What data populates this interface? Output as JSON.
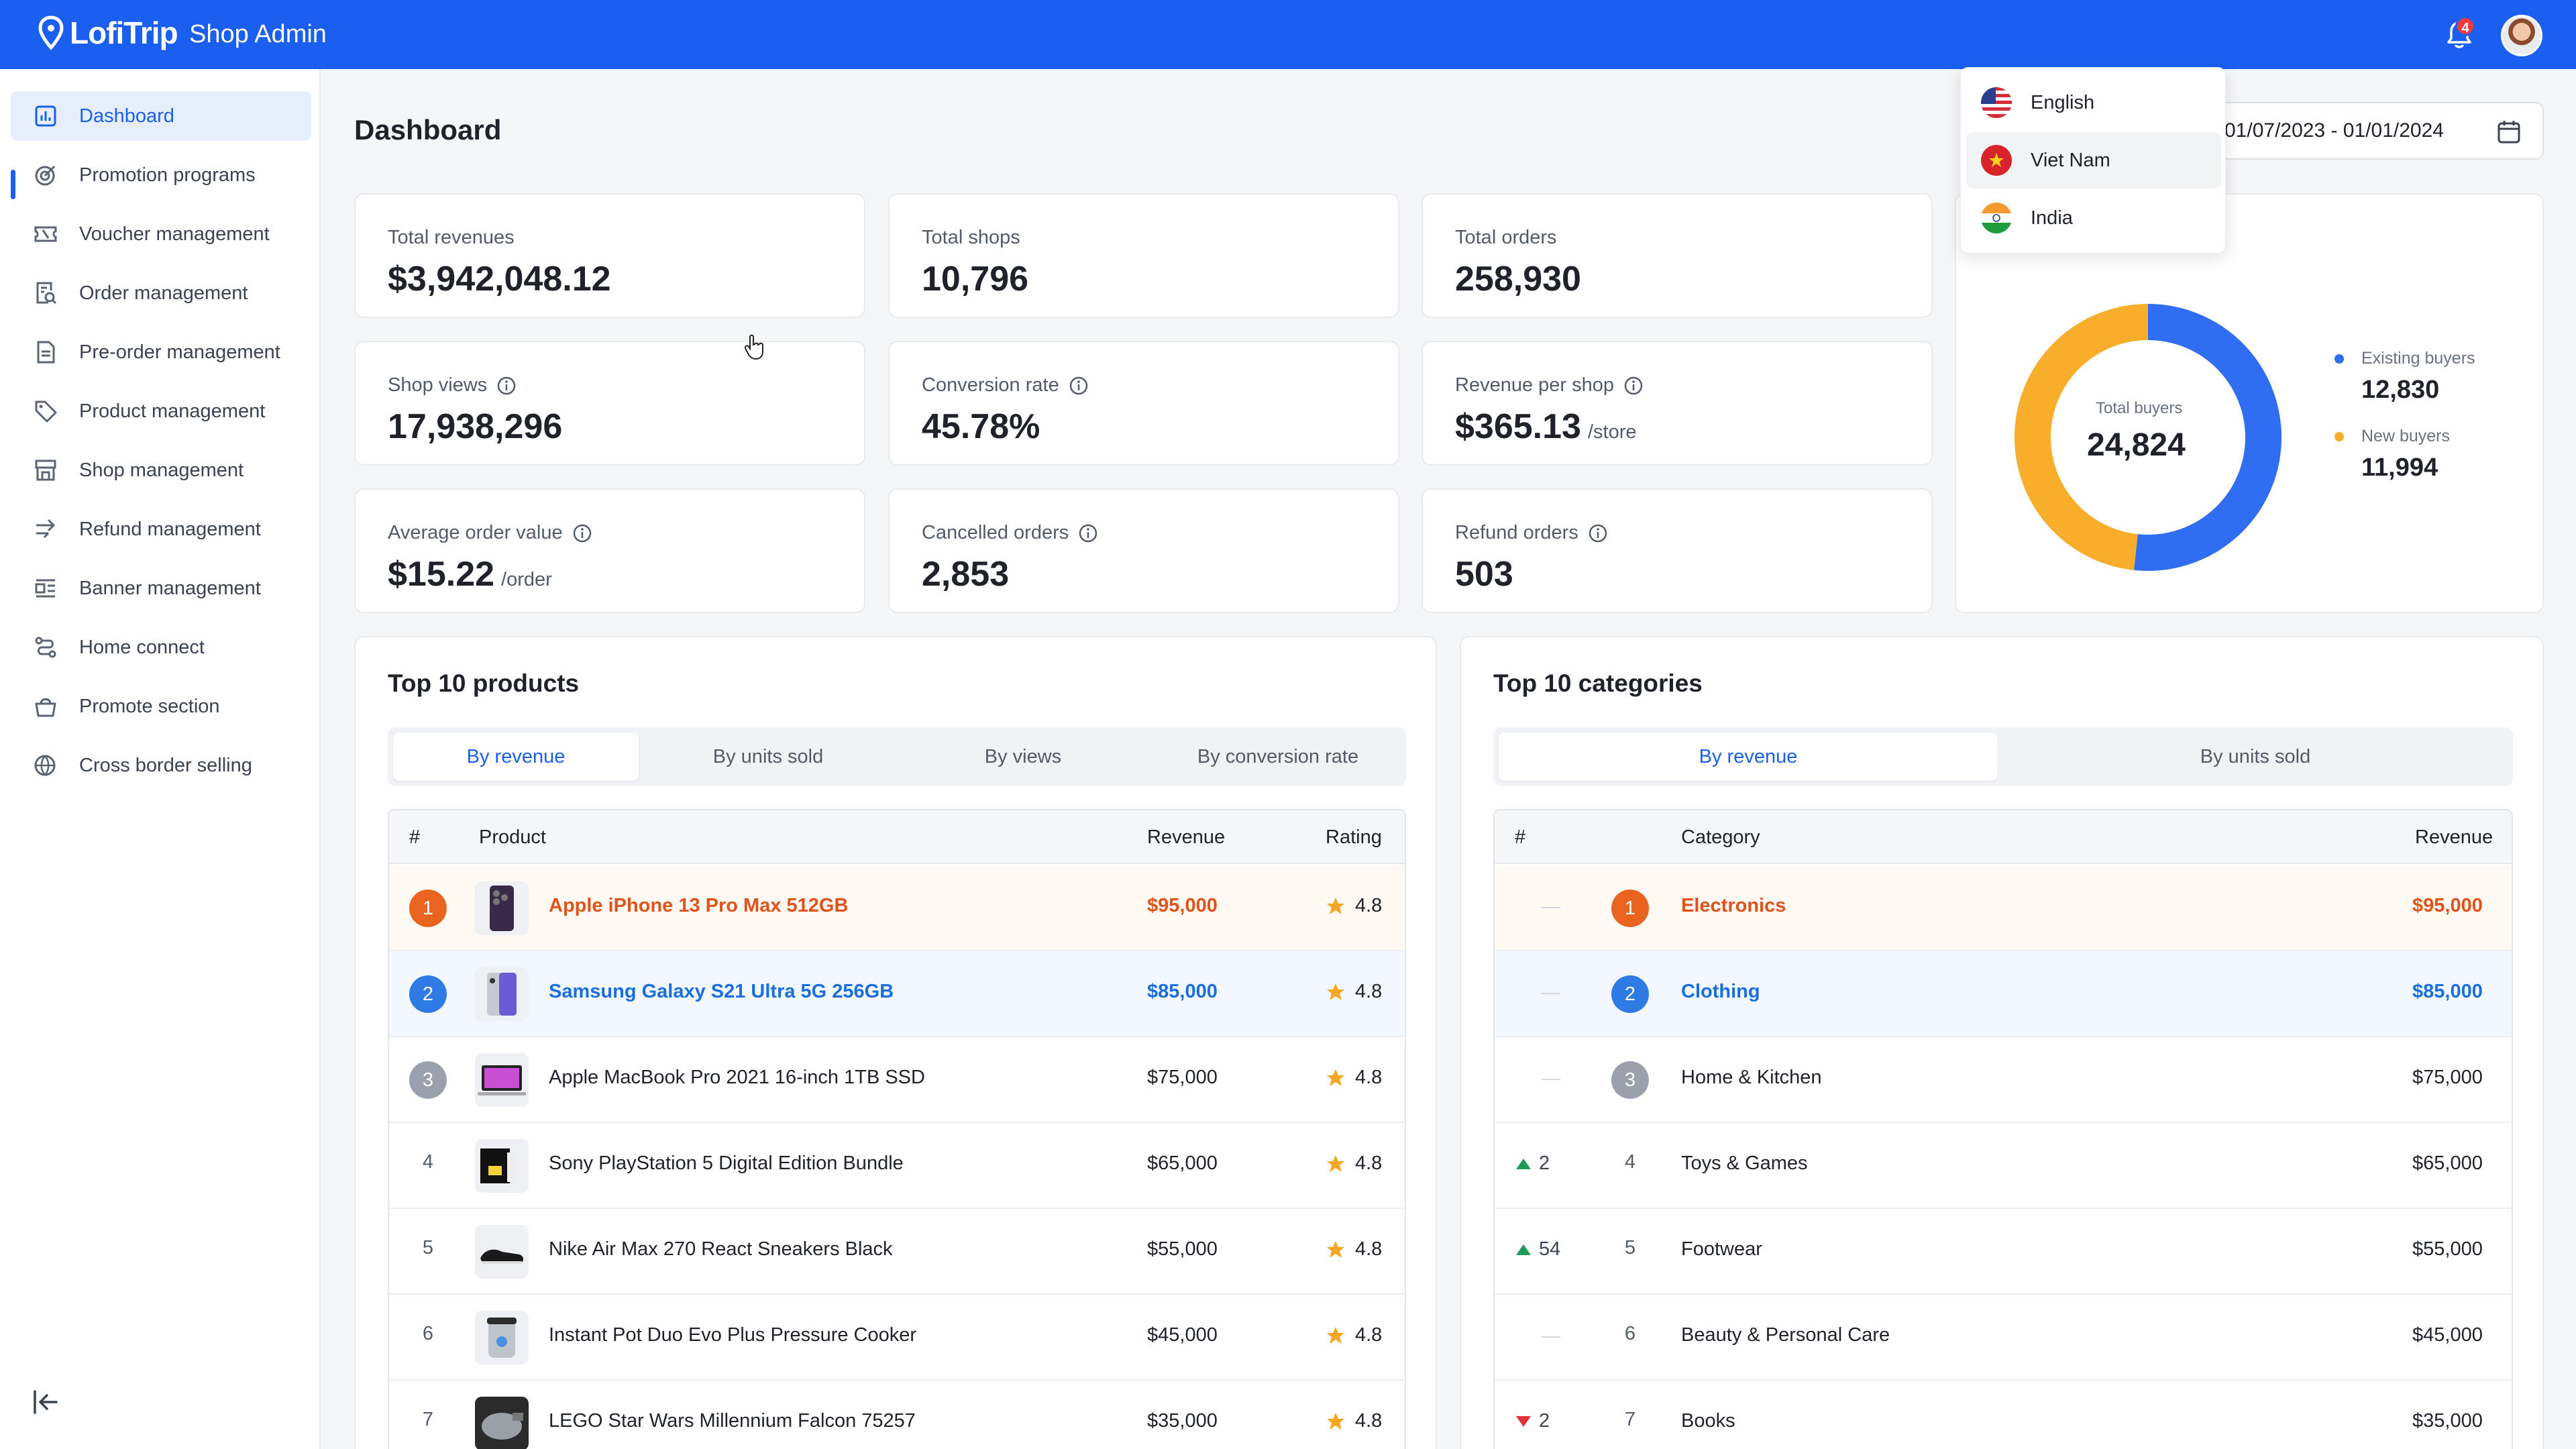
{
  "header": {
    "brand": "LofiTrip",
    "app_name": "Shop Admin",
    "notification_count": "4"
  },
  "sidebar": {
    "items": [
      {
        "label": "Dashboard",
        "icon": "chart-icon"
      },
      {
        "label": "Promotion programs",
        "icon": "target-icon"
      },
      {
        "label": "Voucher management",
        "icon": "ticket-icon"
      },
      {
        "label": "Order management",
        "icon": "order-search-icon"
      },
      {
        "label": "Pre-order management",
        "icon": "document-icon"
      },
      {
        "label": "Product management",
        "icon": "tag-icon"
      },
      {
        "label": "Shop management",
        "icon": "store-icon"
      },
      {
        "label": "Refund management",
        "icon": "refund-icon"
      },
      {
        "label": "Banner management",
        "icon": "banner-icon"
      },
      {
        "label": "Home connect",
        "icon": "route-icon"
      },
      {
        "label": "Promote section",
        "icon": "basket-icon"
      },
      {
        "label": "Cross border selling",
        "icon": "globe-icon"
      }
    ]
  },
  "page": {
    "title": "Dashboard",
    "date_range": "01/07/2023 - 01/01/2024"
  },
  "language_menu": {
    "items": [
      {
        "label": "English"
      },
      {
        "label": "Viet Nam"
      },
      {
        "label": "India"
      }
    ]
  },
  "stats": {
    "total_revenues": {
      "label": "Total revenues",
      "value": "$3,942,048.12"
    },
    "total_shops": {
      "label": "Total shops",
      "value": "10,796"
    },
    "total_orders": {
      "label": "Total orders",
      "value": "258,930"
    },
    "shop_views": {
      "label": "Shop views",
      "value": "17,938,296"
    },
    "conversion_rate": {
      "label": "Conversion rate",
      "value": "45.78%"
    },
    "revenue_per_shop": {
      "label": "Revenue per shop",
      "value": "$365.13",
      "unit": "/store"
    },
    "avg_order_value": {
      "label": "Average order value",
      "value": "$15.22",
      "unit": "/order"
    },
    "cancelled_orders": {
      "label": "Cancelled orders",
      "value": "2,853"
    },
    "refund_orders": {
      "label": "Refund orders",
      "value": "503"
    }
  },
  "buyers": {
    "center_label": "Total buyers",
    "total": "24,824",
    "existing": {
      "label": "Existing buyers",
      "value": "12,830",
      "count": 12830,
      "color": "#2f6df2"
    },
    "new": {
      "label": "New buyers",
      "value": "11,994",
      "count": 11994,
      "color": "#f8ad2b"
    }
  },
  "top_products": {
    "title": "Top 10 products",
    "tabs": [
      "By revenue",
      "By units sold",
      "By views",
      "By conversion rate"
    ],
    "headers": {
      "rank": "#",
      "product": "Product",
      "revenue": "Revenue",
      "rating": "Rating"
    },
    "rows": [
      {
        "rank": "1",
        "name": "Apple iPhone 13 Pro Max 512GB",
        "revenue": "$95,000",
        "rating": "4.8"
      },
      {
        "rank": "2",
        "name": "Samsung Galaxy S21 Ultra 5G 256GB",
        "revenue": "$85,000",
        "rating": "4.8"
      },
      {
        "rank": "3",
        "name": "Apple MacBook Pro 2021 16-inch 1TB SSD",
        "revenue": "$75,000",
        "rating": "4.8"
      },
      {
        "rank": "4",
        "name": "Sony PlayStation 5 Digital Edition Bundle",
        "revenue": "$65,000",
        "rating": "4.8"
      },
      {
        "rank": "5",
        "name": "Nike Air Max 270 React Sneakers Black",
        "revenue": "$55,000",
        "rating": "4.8"
      },
      {
        "rank": "6",
        "name": "Instant Pot Duo Evo Plus Pressure Cooker",
        "revenue": "$45,000",
        "rating": "4.8"
      },
      {
        "rank": "7",
        "name": "LEGO Star Wars Millennium Falcon 75257",
        "revenue": "$35,000",
        "rating": "4.8"
      }
    ]
  },
  "top_categories": {
    "title": "Top 10 categories",
    "tabs": [
      "By revenue",
      "By units sold"
    ],
    "headers": {
      "rank": "#",
      "category": "Category",
      "revenue": "Revenue"
    },
    "rows": [
      {
        "change": "",
        "rank": "1",
        "name": "Electronics",
        "revenue": "$95,000"
      },
      {
        "change": "",
        "rank": "2",
        "name": "Clothing",
        "revenue": "$85,000"
      },
      {
        "change": "",
        "rank": "3",
        "name": "Home & Kitchen",
        "revenue": "$75,000"
      },
      {
        "change": "2",
        "direction": "up",
        "rank": "4",
        "name": "Toys & Games",
        "revenue": "$65,000"
      },
      {
        "change": "54",
        "direction": "up",
        "rank": "5",
        "name": "Footwear",
        "revenue": "$55,000"
      },
      {
        "change": "",
        "rank": "6",
        "name": "Beauty & Personal Care",
        "revenue": "$45,000"
      },
      {
        "change": "2",
        "direction": "down",
        "rank": "7",
        "name": "Books",
        "revenue": "$35,000"
      }
    ]
  }
}
